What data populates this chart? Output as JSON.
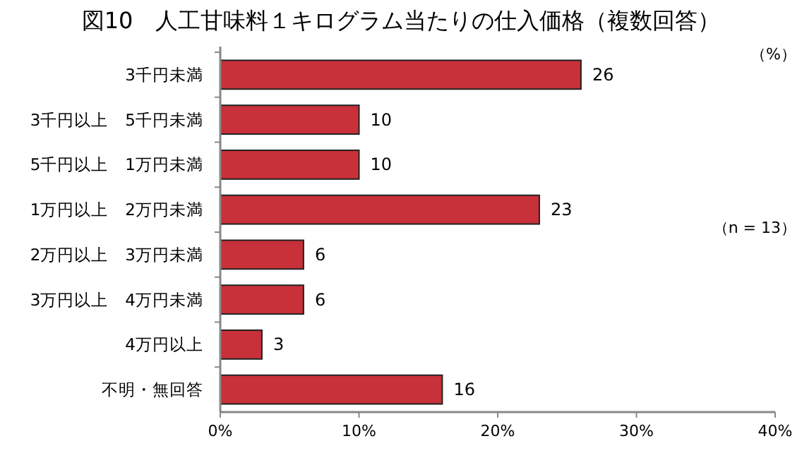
{
  "chart_data": {
    "type": "bar",
    "orientation": "horizontal",
    "title": "図10　人工甘味料１キログラム当たりの仕入価格（複数回答）",
    "categories": [
      "3千円未満",
      "3千円以上　5千円未満",
      "5千円以上　1万円未満",
      "1万円以上　2万円未満",
      "2万円以上　3万円未満",
      "3万円以上　4万円未満",
      "4万円以上",
      "不明・無回答"
    ],
    "values": [
      26,
      10,
      10,
      23,
      6,
      6,
      3,
      16
    ],
    "color": "#c8303a",
    "data_labels": true,
    "xlim": [
      0,
      40
    ],
    "xticks": [
      {
        "value": 0,
        "label": "0%"
      },
      {
        "value": 10,
        "label": "10%"
      },
      {
        "value": 20,
        "label": "20%"
      },
      {
        "value": 30,
        "label": "30%"
      },
      {
        "value": 40,
        "label": "40%"
      }
    ],
    "grid": false,
    "annotations": [
      "（%）",
      "（n = 13）"
    ]
  }
}
